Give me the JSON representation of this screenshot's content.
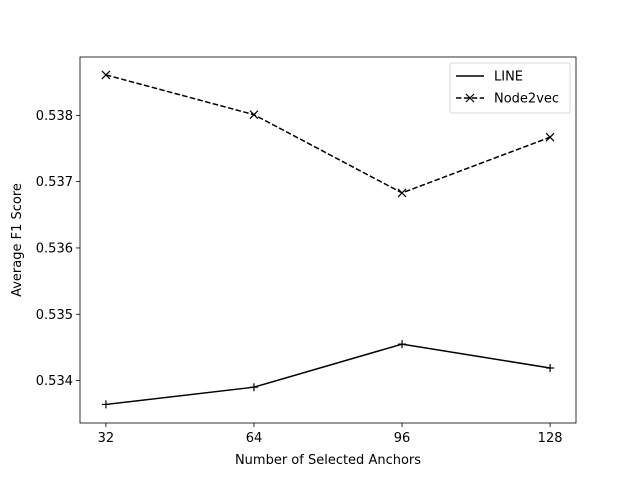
{
  "chart_data": {
    "type": "line",
    "title": "",
    "xlabel": "Number of Selected Anchors",
    "ylabel": "Average F1 Score",
    "x": [
      32,
      64,
      96,
      128
    ],
    "x_tick_labels": [
      "32",
      "64",
      "96",
      "128"
    ],
    "y_ticks": [
      0.534,
      0.535,
      0.536,
      0.537,
      0.538
    ],
    "y_tick_labels": [
      "0.534",
      "0.535",
      "0.536",
      "0.537",
      "0.538"
    ],
    "xlim": [
      26.4,
      133.6
    ],
    "ylim": [
      0.53336,
      0.53888
    ],
    "grid": false,
    "legend_position": "top-right",
    "series": [
      {
        "name": "LINE",
        "values": [
          0.53364,
          0.5339,
          0.53455,
          0.53419
        ],
        "color": "#000000",
        "line_style": "solid",
        "marker": "plus"
      },
      {
        "name": "Node2vec",
        "values": [
          0.53861,
          0.53801,
          0.53683,
          0.53767
        ],
        "color": "#000000",
        "line_style": "dashed",
        "marker": "x"
      }
    ]
  }
}
